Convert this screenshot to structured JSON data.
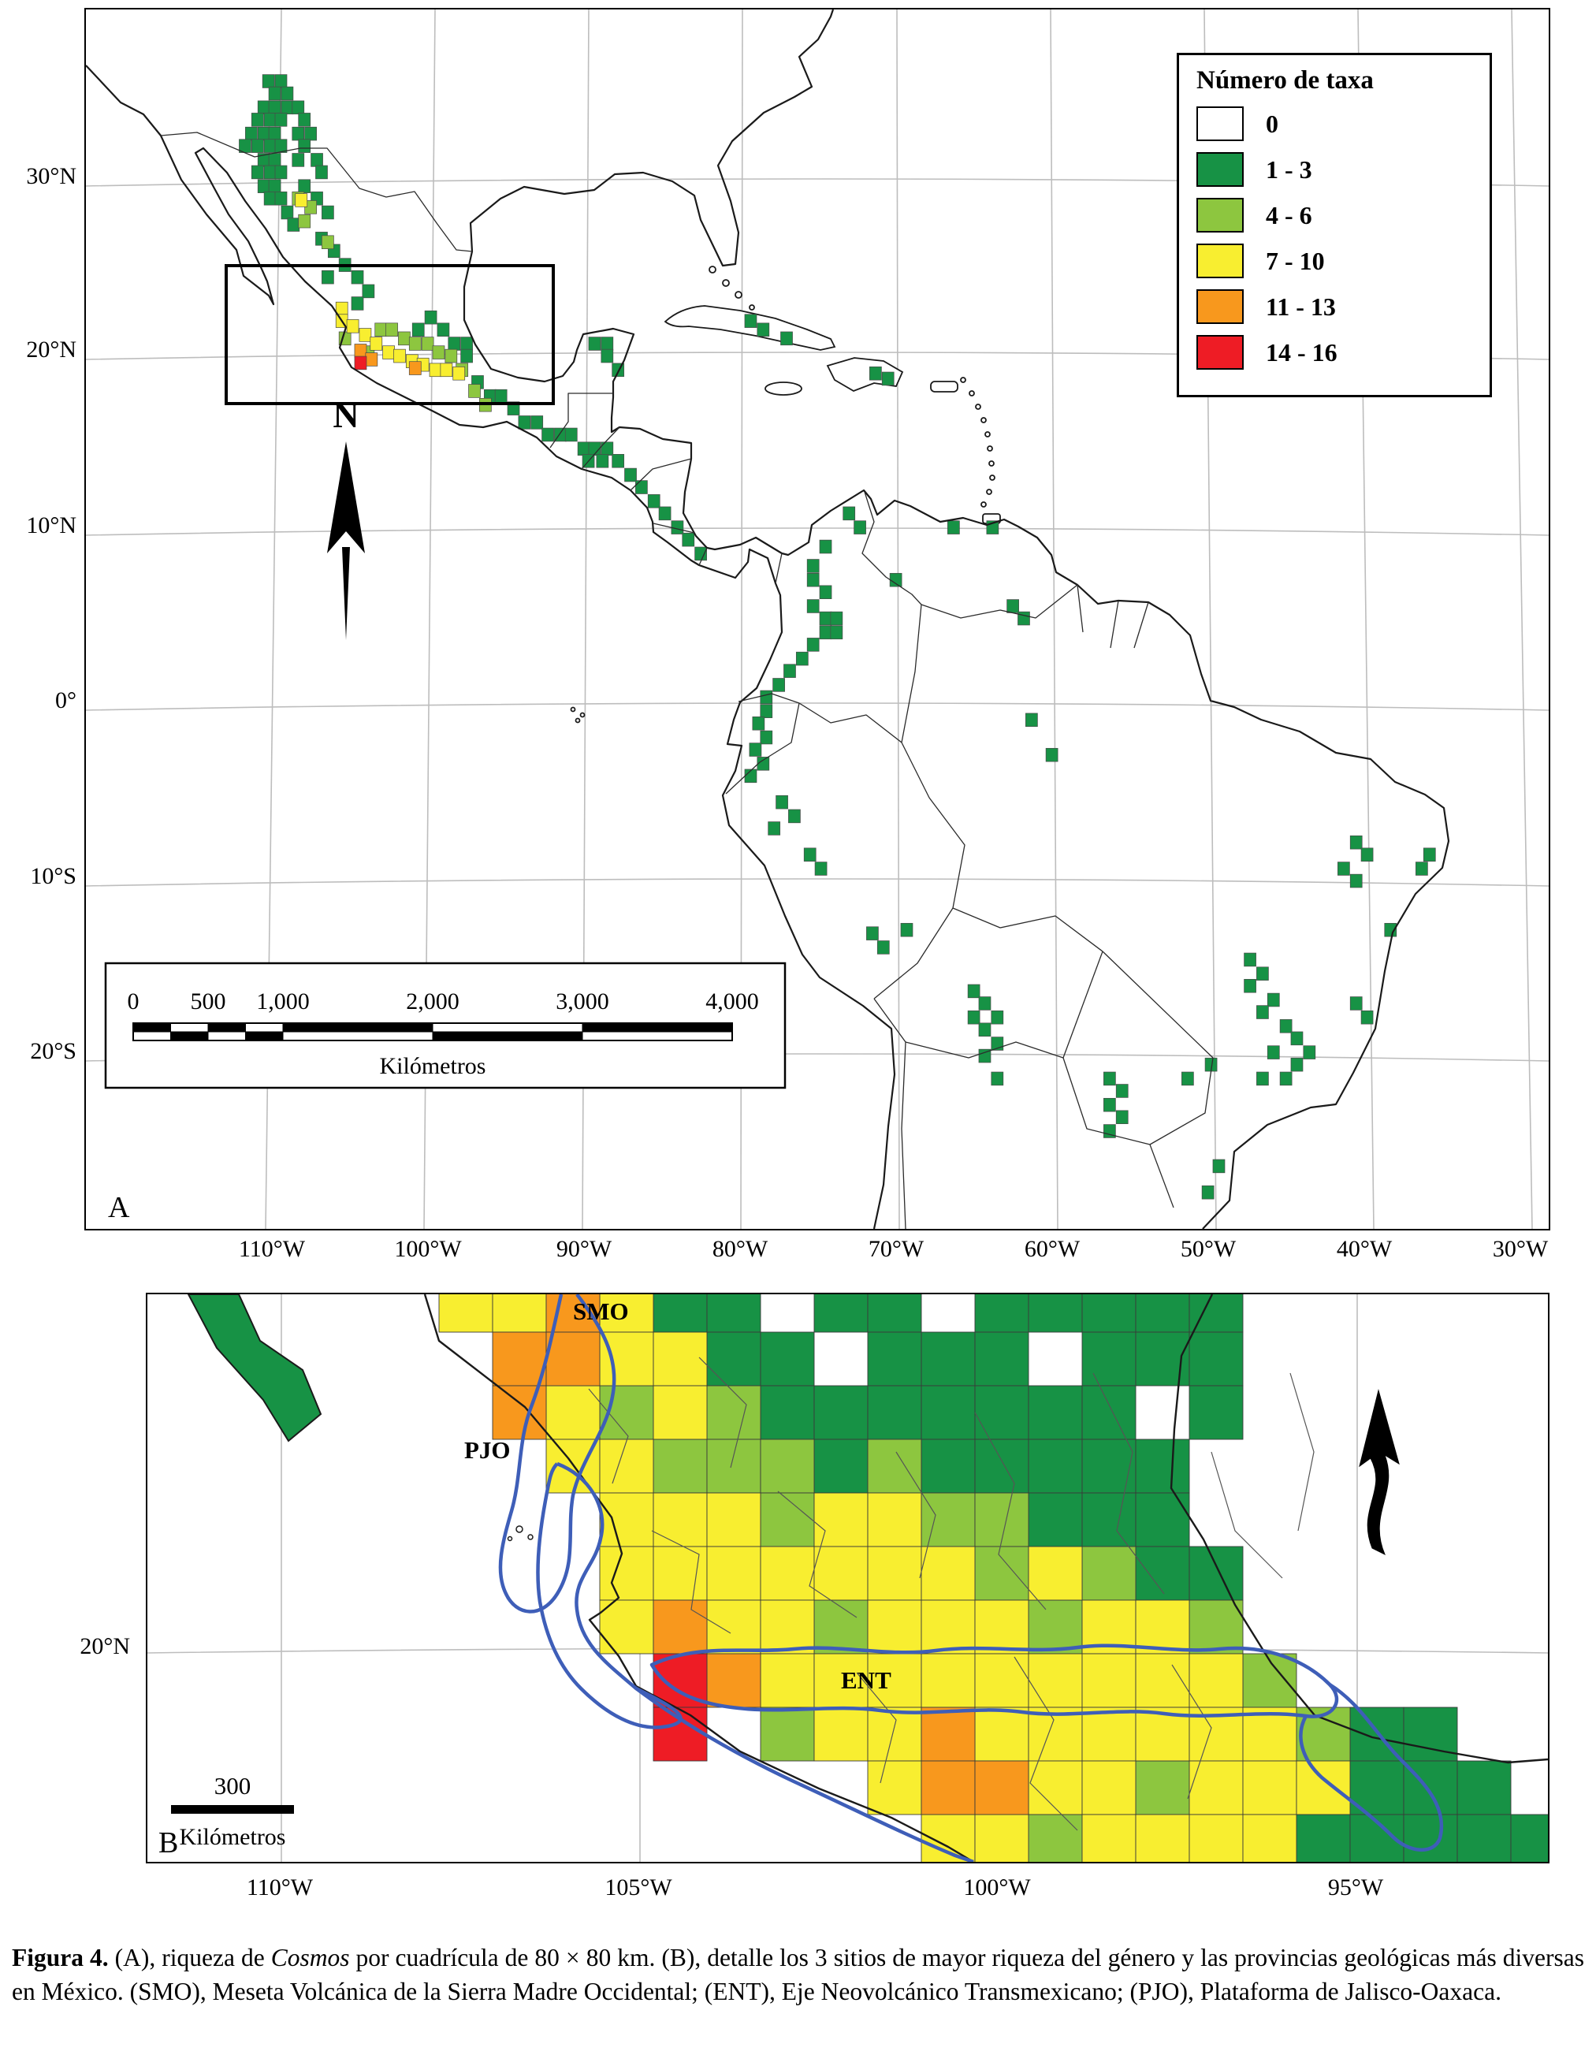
{
  "figure": {
    "caption": {
      "label_bold": "Figura 4.",
      "part1": " (A), riqueza de ",
      "italic1": "Cosmos",
      "part2": " por cuadrícula de 80 × 80 km. (B), detalle los 3 sitios de mayor riqueza del género y las provincias geológicas más diversas en México. (SMO), Meseta Volcánica de la Sierra Madre Occidental; (ENT), Eje Neovolcánico Transmexicano; (PJO), Plataforma de Jalisco-Oaxaca."
    }
  },
  "legend": {
    "title": "Número de taxa",
    "items": [
      {
        "label": "0",
        "color": "#ffffff"
      },
      {
        "label": "1 - 3",
        "color": "#179245"
      },
      {
        "label": "4 - 6",
        "color": "#8dc63f"
      },
      {
        "label": "7 - 10",
        "color": "#f8ee30"
      },
      {
        "label": "11 - 13",
        "color": "#f8981d"
      },
      {
        "label": "14 - 16",
        "color": "#ee1c25"
      }
    ]
  },
  "colors": {
    "taxa_0": "#ffffff",
    "taxa_1_3": "#179245",
    "taxa_4_6": "#8dc63f",
    "taxa_7_10": "#f8ee30",
    "taxa_11_13": "#f8981d",
    "taxa_14_16": "#ee1c25",
    "province_outline": "#3e5eb8"
  },
  "panelA": {
    "label": "A",
    "north_label": "N",
    "lat_labels": [
      "30°N",
      "20°N",
      "10°N",
      "0°",
      "10°S",
      "20°S"
    ],
    "lon_labels": [
      "110°W",
      "100°W",
      "90°W",
      "80°W",
      "70°W",
      "60°W",
      "50°W",
      "40°W",
      "30°W"
    ],
    "scalebar": {
      "labels": [
        "0",
        "500",
        "1,000",
        "2,000",
        "3,000",
        "4,000"
      ],
      "unit": "Kilómetros"
    },
    "cells": {
      "green": [
        [
          -110.3,
          35.6
        ],
        [
          -109.5,
          35.6
        ],
        [
          -109.9,
          34.9
        ],
        [
          -109.1,
          34.9
        ],
        [
          -110.6,
          34.1
        ],
        [
          -109.9,
          34.1
        ],
        [
          -109.1,
          34.1
        ],
        [
          -108.4,
          34.1
        ],
        [
          -111.0,
          33.4
        ],
        [
          -110.2,
          33.4
        ],
        [
          -109.5,
          33.4
        ],
        [
          -108.0,
          33.4
        ],
        [
          -111.4,
          32.6
        ],
        [
          -110.6,
          32.6
        ],
        [
          -109.9,
          32.6
        ],
        [
          -108.4,
          32.6
        ],
        [
          -107.6,
          32.6
        ],
        [
          -111.8,
          31.9
        ],
        [
          -111.0,
          31.9
        ],
        [
          -110.2,
          31.9
        ],
        [
          -109.5,
          31.9
        ],
        [
          -108.0,
          31.9
        ],
        [
          -110.6,
          31.1
        ],
        [
          -109.9,
          31.1
        ],
        [
          -108.4,
          31.1
        ],
        [
          -107.2,
          31.1
        ],
        [
          -111.0,
          30.4
        ],
        [
          -110.2,
          30.4
        ],
        [
          -109.5,
          30.4
        ],
        [
          -106.9,
          30.4
        ],
        [
          -110.6,
          29.6
        ],
        [
          -109.9,
          29.6
        ],
        [
          -108.0,
          29.6
        ],
        [
          -110.2,
          28.9
        ],
        [
          -109.5,
          28.9
        ],
        [
          -107.2,
          28.9
        ],
        [
          -109.1,
          28.1
        ],
        [
          -106.5,
          28.1
        ],
        [
          -108.7,
          27.4
        ],
        [
          -106.9,
          26.6
        ],
        [
          -106.1,
          25.9
        ],
        [
          -105.4,
          25.1
        ],
        [
          -106.5,
          24.4
        ],
        [
          -104.6,
          24.4
        ],
        [
          -103.9,
          23.6
        ],
        [
          -104.6,
          22.9
        ],
        [
          -99.9,
          22.1
        ],
        [
          -100.7,
          21.4
        ],
        [
          -99.1,
          21.4
        ],
        [
          -98.4,
          20.6
        ],
        [
          -97.6,
          20.6
        ],
        [
          -97.6,
          19.9
        ],
        [
          -96.9,
          18.4
        ],
        [
          -96.1,
          17.6
        ],
        [
          -95.4,
          17.6
        ],
        [
          -94.6,
          16.9
        ],
        [
          -93.9,
          16.1
        ],
        [
          -93.1,
          16.1
        ],
        [
          -92.4,
          15.4
        ],
        [
          -91.6,
          15.4
        ],
        [
          -90.9,
          15.4
        ],
        [
          -90.1,
          14.6
        ],
        [
          -89.4,
          14.6
        ],
        [
          -88.6,
          14.6
        ],
        [
          -89.8,
          13.9
        ],
        [
          -88.9,
          13.9
        ],
        [
          -87.9,
          13.9
        ],
        [
          -87.1,
          13.1
        ],
        [
          -86.4,
          12.4
        ],
        [
          -85.6,
          11.6
        ],
        [
          -84.9,
          10.9
        ],
        [
          -84.1,
          10.1
        ],
        [
          -83.4,
          9.4
        ],
        [
          -82.6,
          8.6
        ],
        [
          -89.4,
          20.6
        ],
        [
          -88.6,
          20.6
        ],
        [
          -88.6,
          19.9
        ],
        [
          -87.9,
          19.1
        ],
        [
          -79.4,
          21.9
        ],
        [
          -78.6,
          21.4
        ],
        [
          -77.1,
          20.9
        ],
        [
          -71.4,
          18.9
        ],
        [
          -70.6,
          18.6
        ],
        [
          -73.1,
          10.9
        ],
        [
          -72.4,
          10.1
        ],
        [
          -74.6,
          9.0
        ],
        [
          -75.4,
          7.9
        ],
        [
          -75.4,
          7.1
        ],
        [
          -74.6,
          6.4
        ],
        [
          -75.4,
          5.6
        ],
        [
          -74.6,
          4.9
        ],
        [
          -73.9,
          4.9
        ],
        [
          -74.6,
          4.1
        ],
        [
          -73.9,
          4.1
        ],
        [
          -75.4,
          3.4
        ],
        [
          -76.1,
          2.6
        ],
        [
          -76.9,
          1.9
        ],
        [
          -77.6,
          1.1
        ],
        [
          -70.1,
          7.1
        ],
        [
          -66.4,
          10.1
        ],
        [
          -63.9,
          10.1
        ],
        [
          -62.6,
          5.6
        ],
        [
          -61.9,
          4.9
        ],
        [
          -78.4,
          0.4
        ],
        [
          -78.4,
          -0.4
        ],
        [
          -78.9,
          -1.1
        ],
        [
          -78.4,
          -1.9
        ],
        [
          -79.1,
          -2.6
        ],
        [
          -78.6,
          -3.4
        ],
        [
          -79.4,
          -4.1
        ],
        [
          -77.4,
          -5.6
        ],
        [
          -76.6,
          -6.4
        ],
        [
          -77.9,
          -7.1
        ],
        [
          -75.6,
          -8.6
        ],
        [
          -74.9,
          -9.4
        ],
        [
          -71.6,
          -13.1
        ],
        [
          -70.9,
          -13.9
        ],
        [
          -69.4,
          -12.9
        ],
        [
          -60.1,
          -2.9
        ],
        [
          -61.4,
          -0.9
        ],
        [
          -65.1,
          -16.4
        ],
        [
          -64.4,
          -17.1
        ],
        [
          -65.1,
          -17.9
        ],
        [
          -63.6,
          -17.9
        ],
        [
          -64.4,
          -18.6
        ],
        [
          -63.6,
          -19.4
        ],
        [
          -64.4,
          -20.1
        ],
        [
          -63.6,
          -21.4
        ],
        [
          -47.4,
          -14.6
        ],
        [
          -46.6,
          -15.4
        ],
        [
          -47.4,
          -16.1
        ],
        [
          -45.9,
          -16.9
        ],
        [
          -46.6,
          -17.6
        ],
        [
          -45.1,
          -18.4
        ],
        [
          -44.4,
          -19.1
        ],
        [
          -45.9,
          -19.9
        ],
        [
          -43.6,
          -19.9
        ],
        [
          -44.4,
          -20.6
        ],
        [
          -46.6,
          -21.4
        ],
        [
          -45.1,
          -21.4
        ],
        [
          -49.9,
          -20.6
        ],
        [
          -51.4,
          -21.4
        ],
        [
          -40.6,
          -17.1
        ],
        [
          -39.9,
          -17.9
        ],
        [
          -40.6,
          -7.9
        ],
        [
          -39.9,
          -8.6
        ],
        [
          -41.4,
          -9.4
        ],
        [
          -40.6,
          -10.1
        ],
        [
          -38.4,
          -12.9
        ],
        [
          -36.4,
          -9.4
        ],
        [
          -35.9,
          -8.6
        ],
        [
          -56.4,
          -21.4
        ],
        [
          -55.6,
          -22.1
        ],
        [
          -56.4,
          -22.9
        ],
        [
          -55.6,
          -23.6
        ],
        [
          -56.4,
          -24.4
        ],
        [
          -49.4,
          -26.4
        ],
        [
          -50.1,
          -27.9
        ]
      ],
      "lightgreen": [
        [
          -108.4,
          28.9
        ],
        [
          -107.6,
          28.4
        ],
        [
          -108.0,
          27.6
        ],
        [
          -106.5,
          26.4
        ],
        [
          -105.4,
          20.9
        ],
        [
          -103.9,
          20.1
        ],
        [
          -103.1,
          21.4
        ],
        [
          -102.4,
          21.4
        ],
        [
          -101.6,
          20.9
        ],
        [
          -100.9,
          20.6
        ],
        [
          -100.1,
          20.6
        ],
        [
          -99.4,
          20.1
        ],
        [
          -98.6,
          19.9
        ],
        [
          -97.9,
          19.1
        ],
        [
          -97.1,
          17.9
        ],
        [
          -96.4,
          17.1
        ]
      ],
      "yellow": [
        [
          -108.2,
          28.8
        ],
        [
          -105.6,
          22.6
        ],
        [
          -105.6,
          21.9
        ],
        [
          -104.9,
          21.6
        ],
        [
          -104.1,
          21.1
        ],
        [
          -103.4,
          20.6
        ],
        [
          -102.6,
          20.1
        ],
        [
          -101.9,
          19.9
        ],
        [
          -101.1,
          19.6
        ],
        [
          -100.4,
          19.4
        ],
        [
          -99.6,
          19.1
        ],
        [
          -98.9,
          19.1
        ],
        [
          -98.1,
          18.9
        ]
      ],
      "orange": [
        [
          -104.4,
          20.2
        ],
        [
          -103.7,
          19.7
        ],
        [
          -100.9,
          19.2
        ]
      ],
      "red": [
        [
          -104.4,
          19.5
        ]
      ]
    }
  },
  "panelB": {
    "label": "B",
    "lat_labels": [
      "20°N"
    ],
    "lon_labels": [
      "110°W",
      "105°W",
      "100°W",
      "95°W"
    ],
    "region_labels": [
      "SMO",
      "PJO",
      "ENT"
    ],
    "scalebar": {
      "label": "300",
      "unit": "Kilómetros"
    },
    "cells": [
      [
        5,
        0,
        "y"
      ],
      [
        6,
        0,
        "y"
      ],
      [
        7,
        0,
        "o"
      ],
      [
        8,
        0,
        "y"
      ],
      [
        9,
        0,
        "g"
      ],
      [
        10,
        0,
        "g"
      ],
      [
        12,
        0,
        "g"
      ],
      [
        13,
        0,
        "g"
      ],
      [
        15,
        0,
        "g"
      ],
      [
        16,
        0,
        "g"
      ],
      [
        17,
        0,
        "g"
      ],
      [
        18,
        0,
        "g"
      ],
      [
        19,
        0,
        "g"
      ],
      [
        6,
        1,
        "o"
      ],
      [
        7,
        1,
        "o"
      ],
      [
        8,
        1,
        "y"
      ],
      [
        9,
        1,
        "y"
      ],
      [
        10,
        1,
        "g"
      ],
      [
        11,
        1,
        "g"
      ],
      [
        13,
        1,
        "g"
      ],
      [
        14,
        1,
        "g"
      ],
      [
        15,
        1,
        "g"
      ],
      [
        17,
        1,
        "g"
      ],
      [
        18,
        1,
        "g"
      ],
      [
        19,
        1,
        "g"
      ],
      [
        6,
        2,
        "o"
      ],
      [
        7,
        2,
        "y"
      ],
      [
        8,
        2,
        "l"
      ],
      [
        9,
        2,
        "y"
      ],
      [
        10,
        2,
        "l"
      ],
      [
        11,
        2,
        "g"
      ],
      [
        12,
        2,
        "g"
      ],
      [
        13,
        2,
        "g"
      ],
      [
        14,
        2,
        "g"
      ],
      [
        15,
        2,
        "g"
      ],
      [
        16,
        2,
        "g"
      ],
      [
        17,
        2,
        "g"
      ],
      [
        19,
        2,
        "g"
      ],
      [
        7,
        3,
        "y"
      ],
      [
        8,
        3,
        "y"
      ],
      [
        9,
        3,
        "l"
      ],
      [
        10,
        3,
        "l"
      ],
      [
        11,
        3,
        "l"
      ],
      [
        12,
        3,
        "g"
      ],
      [
        13,
        3,
        "l"
      ],
      [
        14,
        3,
        "g"
      ],
      [
        15,
        3,
        "g"
      ],
      [
        16,
        3,
        "g"
      ],
      [
        17,
        3,
        "g"
      ],
      [
        18,
        3,
        "g"
      ],
      [
        8,
        4,
        "y"
      ],
      [
        9,
        4,
        "y"
      ],
      [
        10,
        4,
        "y"
      ],
      [
        11,
        4,
        "l"
      ],
      [
        12,
        4,
        "y"
      ],
      [
        13,
        4,
        "y"
      ],
      [
        14,
        4,
        "l"
      ],
      [
        15,
        4,
        "l"
      ],
      [
        16,
        4,
        "g"
      ],
      [
        17,
        4,
        "g"
      ],
      [
        18,
        4,
        "g"
      ],
      [
        8,
        5,
        "y"
      ],
      [
        9,
        5,
        "y"
      ],
      [
        10,
        5,
        "y"
      ],
      [
        11,
        5,
        "y"
      ],
      [
        12,
        5,
        "y"
      ],
      [
        13,
        5,
        "y"
      ],
      [
        14,
        5,
        "y"
      ],
      [
        15,
        5,
        "l"
      ],
      [
        16,
        5,
        "y"
      ],
      [
        17,
        5,
        "l"
      ],
      [
        18,
        5,
        "g"
      ],
      [
        19,
        5,
        "g"
      ],
      [
        8,
        6,
        "y"
      ],
      [
        9,
        6,
        "o"
      ],
      [
        10,
        6,
        "y"
      ],
      [
        11,
        6,
        "y"
      ],
      [
        12,
        6,
        "l"
      ],
      [
        13,
        6,
        "y"
      ],
      [
        14,
        6,
        "y"
      ],
      [
        15,
        6,
        "y"
      ],
      [
        16,
        6,
        "l"
      ],
      [
        17,
        6,
        "y"
      ],
      [
        18,
        6,
        "y"
      ],
      [
        19,
        6,
        "l"
      ],
      [
        9,
        7,
        "r"
      ],
      [
        10,
        7,
        "o"
      ],
      [
        11,
        7,
        "y"
      ],
      [
        12,
        7,
        "y"
      ],
      [
        13,
        7,
        "y"
      ],
      [
        14,
        7,
        "y"
      ],
      [
        15,
        7,
        "y"
      ],
      [
        16,
        7,
        "y"
      ],
      [
        17,
        7,
        "y"
      ],
      [
        18,
        7,
        "y"
      ],
      [
        19,
        7,
        "y"
      ],
      [
        20,
        7,
        "l"
      ],
      [
        9,
        8,
        "r"
      ],
      [
        11,
        8,
        "l"
      ],
      [
        12,
        8,
        "y"
      ],
      [
        13,
        8,
        "y"
      ],
      [
        14,
        8,
        "o"
      ],
      [
        15,
        8,
        "y"
      ],
      [
        16,
        8,
        "y"
      ],
      [
        17,
        8,
        "y"
      ],
      [
        18,
        8,
        "y"
      ],
      [
        19,
        8,
        "y"
      ],
      [
        20,
        8,
        "y"
      ],
      [
        21,
        8,
        "l"
      ],
      [
        22,
        8,
        "g"
      ],
      [
        23,
        8,
        "g"
      ],
      [
        13,
        9,
        "y"
      ],
      [
        14,
        9,
        "o"
      ],
      [
        15,
        9,
        "o"
      ],
      [
        16,
        9,
        "y"
      ],
      [
        17,
        9,
        "y"
      ],
      [
        18,
        9,
        "l"
      ],
      [
        19,
        9,
        "y"
      ],
      [
        20,
        9,
        "y"
      ],
      [
        21,
        9,
        "y"
      ],
      [
        22,
        9,
        "g"
      ],
      [
        23,
        9,
        "g"
      ],
      [
        24,
        9,
        "g"
      ],
      [
        14,
        10,
        "y"
      ],
      [
        15,
        10,
        "y"
      ],
      [
        16,
        10,
        "l"
      ],
      [
        17,
        10,
        "y"
      ],
      [
        18,
        10,
        "y"
      ],
      [
        19,
        10,
        "y"
      ],
      [
        20,
        10,
        "y"
      ],
      [
        21,
        10,
        "g"
      ],
      [
        22,
        10,
        "g"
      ],
      [
        23,
        10,
        "g"
      ],
      [
        24,
        10,
        "g"
      ],
      [
        25,
        10,
        "g"
      ]
    ]
  }
}
